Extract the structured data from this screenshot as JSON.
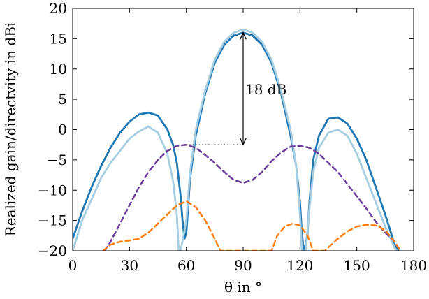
{
  "chart_data": {
    "type": "line",
    "title": "",
    "xlabel": "θ in °",
    "ylabel": "Realized gain/directvity in dBi",
    "xlim": [
      0,
      180
    ],
    "ylim": [
      -20,
      20
    ],
    "xticks": [
      0,
      30,
      60,
      90,
      120,
      150,
      180
    ],
    "yticks": [
      -20,
      -15,
      -10,
      -5,
      0,
      5,
      10,
      15,
      20
    ],
    "grid": false,
    "legend": "none",
    "annotation": {
      "text": "18 dB",
      "x": 90,
      "y_top": 16,
      "y_bottom": -2.5,
      "ref_x_start": 60
    },
    "series": [
      {
        "color": "#1f77b4",
        "dash": "solid",
        "width": 2.8,
        "x": [
          0,
          5,
          10,
          15,
          20,
          25,
          30,
          35,
          40,
          45,
          50,
          53,
          55,
          57,
          58,
          59,
          60,
          62,
          65,
          70,
          75,
          80,
          85,
          90,
          95,
          100,
          105,
          110,
          115,
          118,
          120,
          121,
          122,
          123,
          124,
          125,
          127,
          130,
          135,
          140,
          145,
          150,
          155,
          160,
          165,
          170,
          172
        ],
        "y": [
          -18,
          -13.5,
          -9.5,
          -6,
          -3,
          -0.5,
          1.3,
          2.5,
          2.8,
          2.3,
          0,
          -2.5,
          -5.5,
          -11,
          -15,
          -18,
          -17,
          -8,
          -1,
          6,
          11,
          14,
          15.5,
          16,
          15.5,
          14,
          11,
          6,
          -1,
          -6,
          -12,
          -17,
          -20,
          -19,
          -17,
          -12,
          -5,
          -1,
          1.8,
          2,
          1,
          -1.5,
          -5,
          -9.5,
          -14,
          -19,
          -20
        ]
      },
      {
        "color": "#a6cee3",
        "dash": "solid",
        "width": 2.8,
        "x": [
          0,
          2,
          5,
          10,
          15,
          20,
          25,
          30,
          35,
          40,
          45,
          50,
          53,
          55,
          56,
          57,
          60,
          62,
          65,
          70,
          75,
          80,
          85,
          90,
          95,
          100,
          105,
          110,
          115,
          118,
          120,
          121,
          123,
          125,
          127,
          130,
          135,
          140,
          145,
          150,
          155,
          160,
          165,
          170,
          171
        ],
        "y": [
          -20,
          -18,
          -15,
          -11.5,
          -8,
          -5.5,
          -3.5,
          -1.5,
          -0.3,
          0.5,
          -0.5,
          -4,
          -8.5,
          -14,
          -20,
          -20,
          -15,
          -7,
          0,
          6.5,
          11.5,
          14.5,
          16,
          16.5,
          16,
          14.5,
          11.5,
          6.5,
          0,
          -6,
          -14,
          -20,
          -20,
          -13,
          -7,
          -3,
          -0.5,
          0,
          -1,
          -4,
          -8,
          -12,
          -16,
          -19.5,
          -20
        ]
      },
      {
        "color": "#6a3d9a",
        "dash": "dashed",
        "width": 2.5,
        "x": [
          17,
          20,
          25,
          30,
          35,
          40,
          45,
          50,
          55,
          60,
          65,
          70,
          75,
          80,
          85,
          90,
          95,
          100,
          105,
          110,
          115,
          120,
          125,
          130,
          135,
          140,
          145,
          150,
          155,
          160,
          165,
          170,
          173
        ],
        "y": [
          -20,
          -18.5,
          -15.5,
          -12.5,
          -9.5,
          -7,
          -5,
          -3.5,
          -2.7,
          -2.5,
          -3,
          -4.2,
          -5.5,
          -7,
          -8.3,
          -8.8,
          -8.3,
          -7,
          -5.2,
          -3.8,
          -2.8,
          -2.7,
          -3,
          -4,
          -5.5,
          -7,
          -9,
          -11,
          -13,
          -15.2,
          -17,
          -18.5,
          -20
        ]
      },
      {
        "color": "#ff7f0e",
        "dash": "dashed",
        "width": 2.5,
        "x": [
          16,
          20,
          25,
          30,
          35,
          40,
          45,
          50,
          55,
          60,
          65,
          70,
          75,
          78,
          105,
          108,
          112,
          116,
          120,
          124,
          127,
          130,
          133,
          140,
          145,
          150,
          155,
          160,
          165,
          170,
          173
        ],
        "y": [
          -20,
          -19,
          -18.5,
          -18.3,
          -18,
          -17,
          -15.5,
          -14,
          -12.5,
          -11.8,
          -12.8,
          -15,
          -18,
          -20,
          -20,
          -17.5,
          -16,
          -15.5,
          -15.8,
          -17.5,
          -20,
          -20,
          -20,
          -18,
          -16.8,
          -16,
          -15.7,
          -15.8,
          -16.6,
          -18.5,
          -20
        ]
      }
    ]
  }
}
